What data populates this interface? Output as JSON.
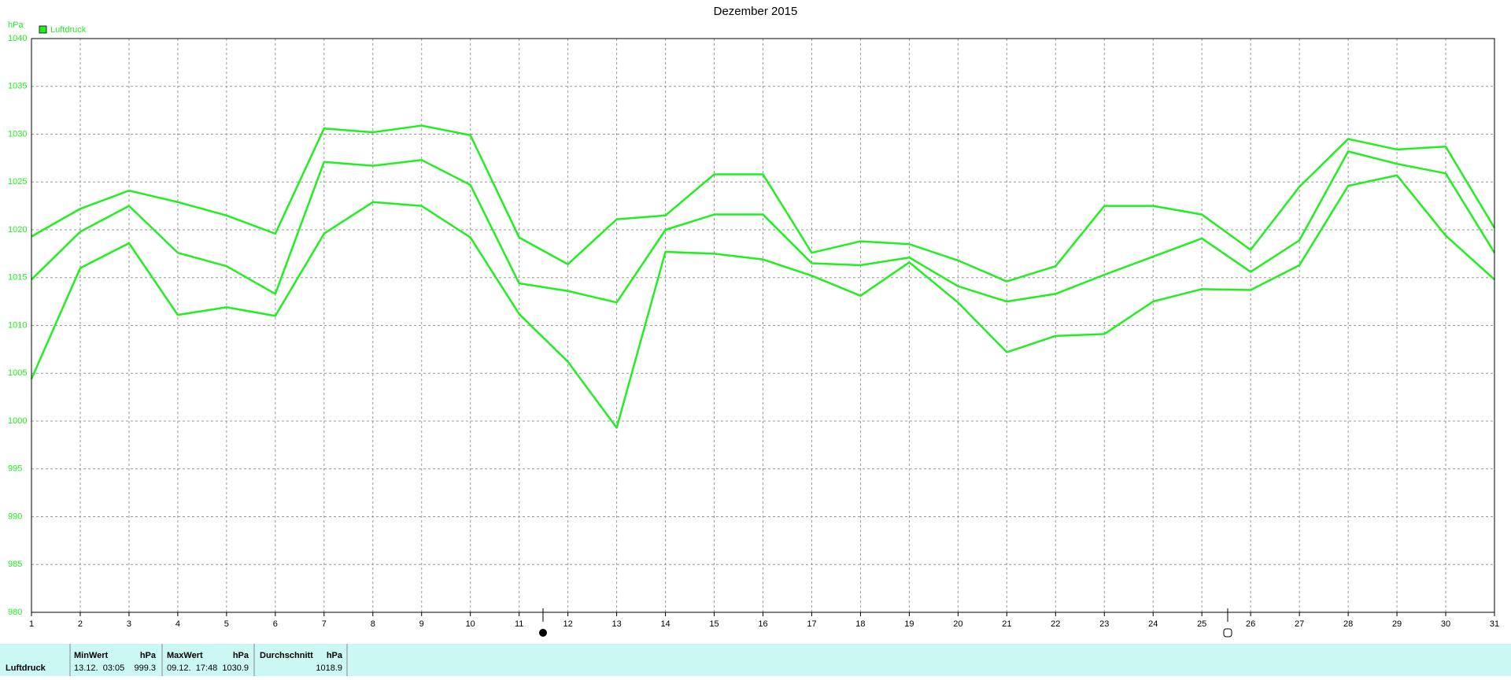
{
  "chart_data": {
    "type": "line",
    "title": "Dezember 2015",
    "y_label": "hPa",
    "x": [
      1,
      2,
      3,
      4,
      5,
      6,
      7,
      8,
      9,
      10,
      11,
      12,
      13,
      14,
      15,
      16,
      17,
      18,
      19,
      20,
      21,
      22,
      23,
      24,
      25,
      26,
      27,
      28,
      29,
      30,
      31
    ],
    "xlim": [
      1,
      31
    ],
    "series": [
      {
        "name": "Luftdruck",
        "color": "#22ee22",
        "values": [
          1014.8,
          1019.8,
          1022.5,
          1017.6,
          1016.2,
          1013.3,
          1027.1,
          1026.7,
          1027.3,
          1024.7,
          1014.4,
          1013.6,
          1012.4,
          1020.0,
          1021.6,
          1021.6,
          1016.5,
          1016.3,
          1017.1,
          1014.1,
          1012.5,
          1013.3,
          1015.3,
          1017.2,
          1019.1,
          1015.6,
          1018.9,
          1028.2,
          1026.9,
          1025.9,
          1017.6
        ]
      },
      {
        "color": "#22ee22",
        "values": [
          1019.3,
          1022.2,
          1024.1,
          1022.9,
          1021.5,
          1019.6,
          1030.6,
          1030.2,
          1030.9,
          1029.9,
          1019.2,
          1016.4,
          1021.1,
          1021.5,
          1025.8,
          1025.8,
          1017.6,
          1018.8,
          1018.5,
          1016.8,
          1014.6,
          1016.2,
          1022.5,
          1022.5,
          1021.6,
          1017.9,
          1024.5,
          1029.5,
          1028.4,
          1028.7,
          1020.2
        ]
      },
      {
        "color": "#22ee22",
        "values": [
          1004.4,
          1016.0,
          1018.6,
          1011.1,
          1011.9,
          1011.0,
          1019.6,
          1022.9,
          1022.5,
          1019.2,
          1011.2,
          1006.2,
          999.3,
          1017.7,
          1017.5,
          1016.9,
          1015.2,
          1013.1,
          1016.6,
          1012.4,
          1007.2,
          1008.9,
          1009.1,
          1012.5,
          1013.8,
          1013.7,
          1016.3,
          1024.6,
          1025.7,
          1019.4,
          1014.8
        ]
      }
    ],
    "ylim": [
      980,
      1040
    ],
    "yticks": [
      980,
      985,
      990,
      995,
      1000,
      1005,
      1010,
      1015,
      1020,
      1025,
      1030,
      1035,
      1040
    ],
    "grid": true
  },
  "table": {
    "row_label": "Luftdruck",
    "min": {
      "header": "MinWert",
      "unit": "hPa",
      "time": "13.12.  03:05",
      "value": 999.3
    },
    "max": {
      "header": "MaxWert",
      "unit": "hPa",
      "time": "09.12.  17:48",
      "value": 1030.9
    },
    "avg": {
      "header": "Durchschnitt",
      "unit": "hPa",
      "value": 1018.9
    }
  }
}
